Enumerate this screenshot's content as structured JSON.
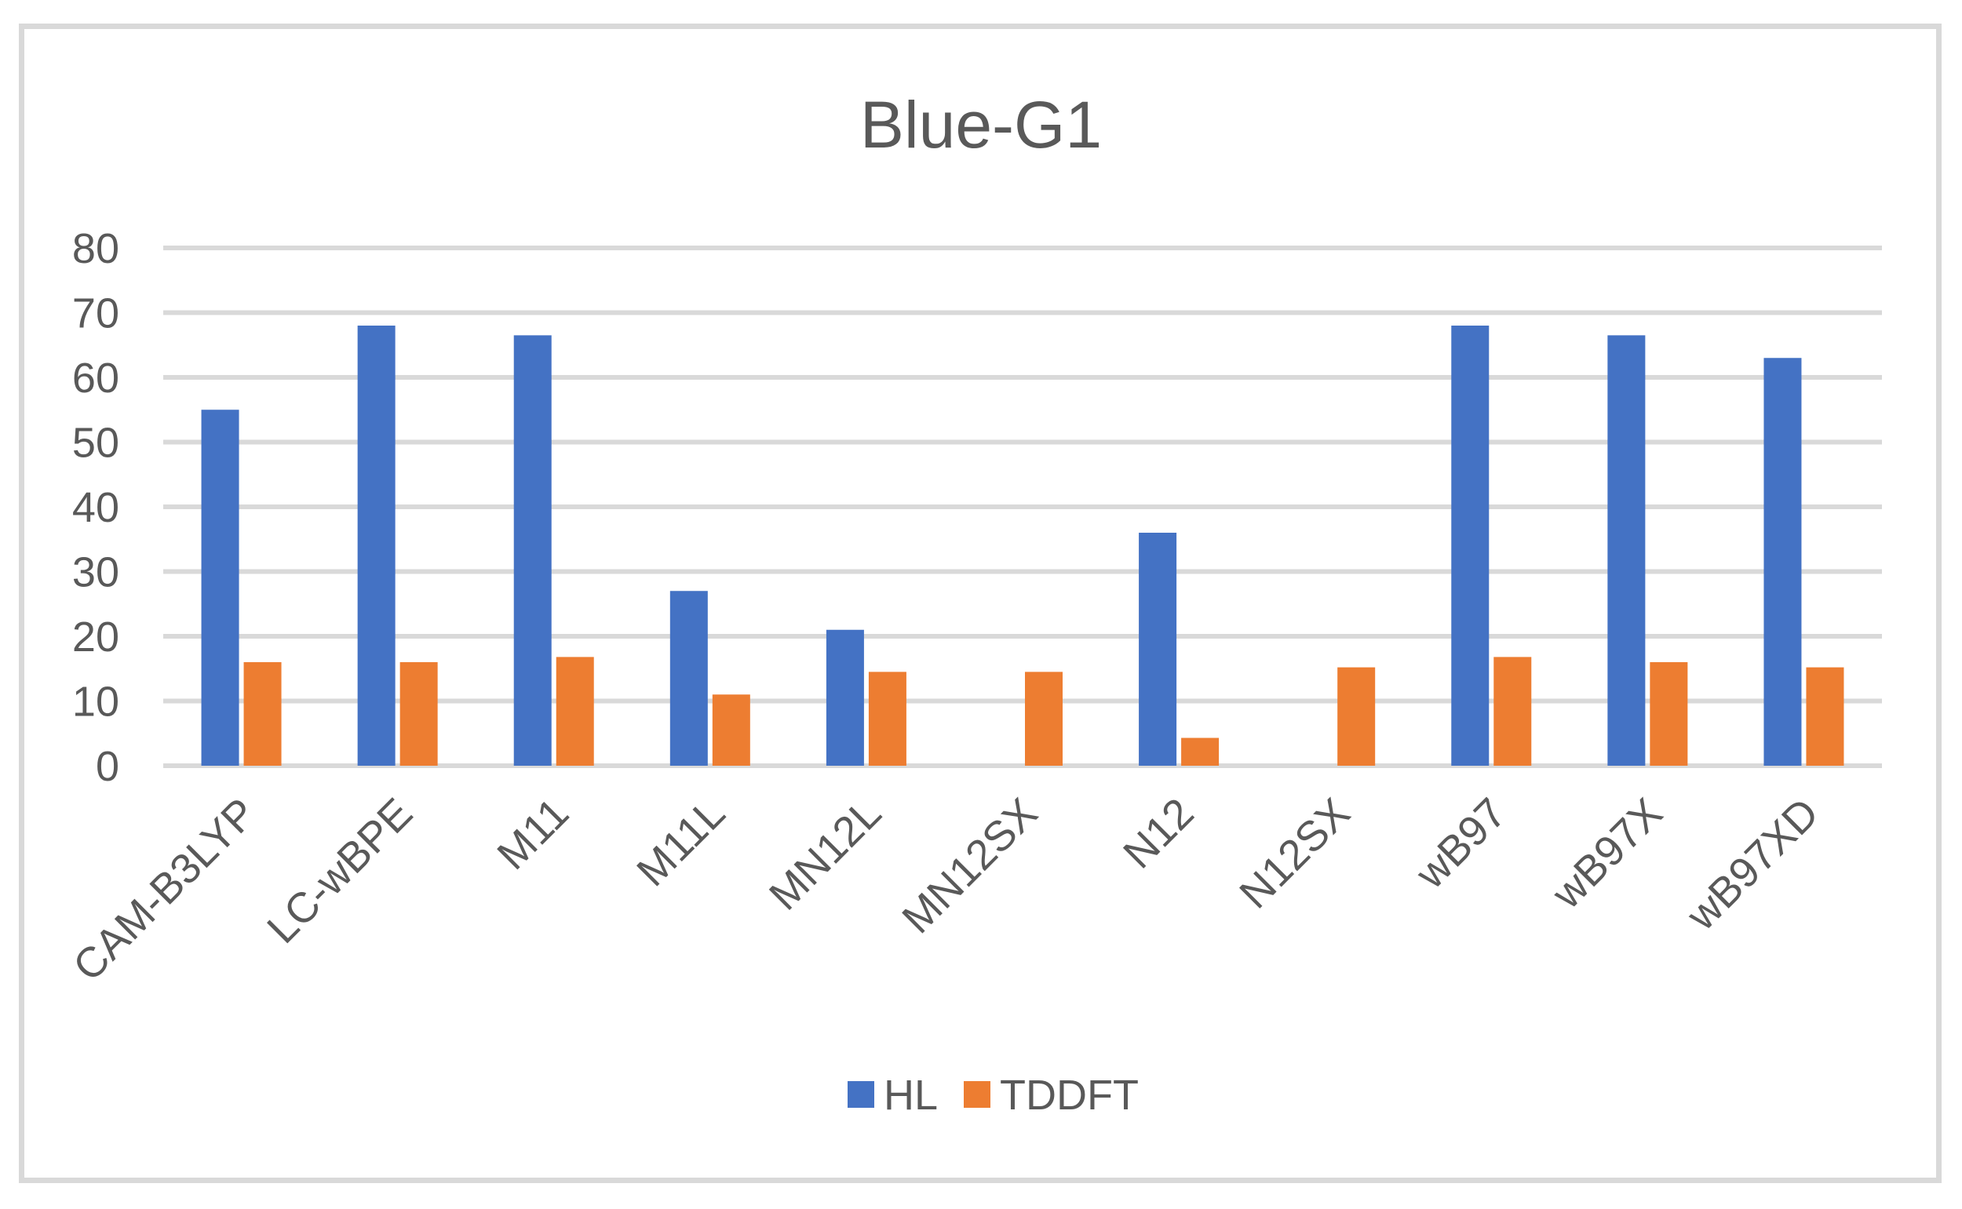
{
  "chart_data": {
    "type": "bar",
    "title": "Blue-G1",
    "categories": [
      "CAM-B3LYP",
      "LC-wBPE",
      "M11",
      "M11L",
      "MN12L",
      "MN12SX",
      "N12",
      "N12SX",
      "wB97",
      "wB97X",
      "wB97XD"
    ],
    "series": [
      {
        "name": "HL",
        "color": "#4472c4",
        "values": [
          55,
          68,
          66.5,
          27,
          21,
          0,
          36,
          0,
          68,
          66.5,
          63
        ]
      },
      {
        "name": "TDDFT",
        "color": "#ed7d31",
        "values": [
          16,
          16,
          16.8,
          11,
          14.5,
          14.5,
          4.3,
          15.2,
          16.8,
          16,
          15.2
        ]
      }
    ],
    "ylim": [
      0,
      80
    ],
    "yticks": [
      "0",
      "10",
      "20",
      "30",
      "40",
      "50",
      "60",
      "70",
      "80"
    ],
    "grid": true,
    "legend_position": "bottom",
    "xlabel": "",
    "ylabel": ""
  }
}
